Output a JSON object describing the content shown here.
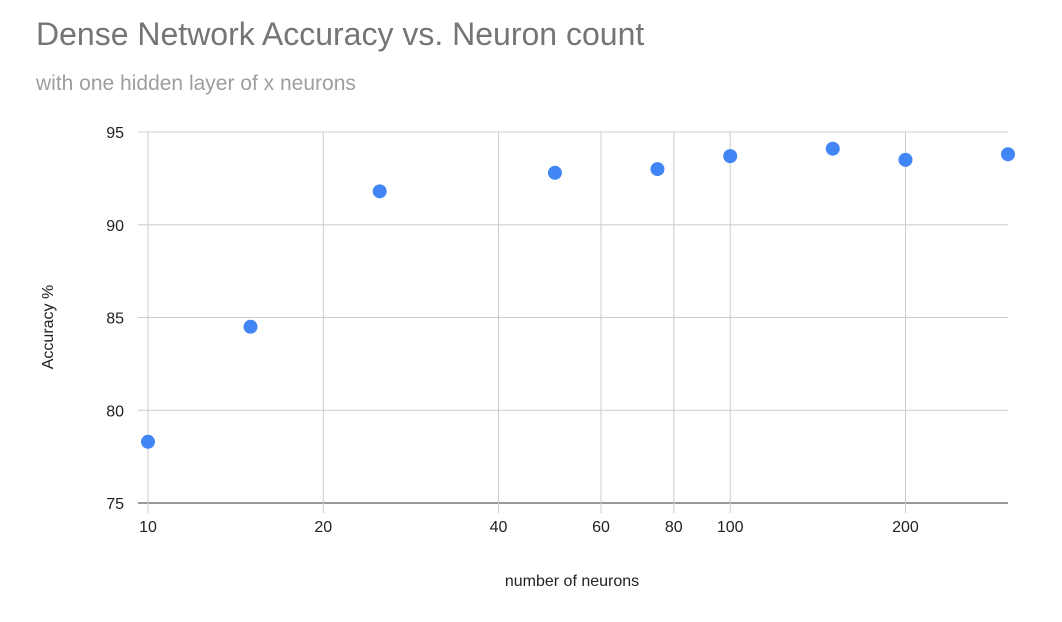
{
  "chart_data": {
    "type": "scatter",
    "title": "Dense Network Accuracy vs. Neuron count",
    "subtitle": "with one hidden layer of x neurons",
    "xlabel": "number of neurons",
    "ylabel": "Accuracy %",
    "x_scale": "log",
    "xlim": [
      10,
      300
    ],
    "ylim": [
      75,
      95
    ],
    "x_ticks": [
      10,
      20,
      40,
      60,
      80,
      100,
      200
    ],
    "y_ticks": [
      75,
      80,
      85,
      90,
      95
    ],
    "grid": true,
    "legend": "none",
    "series": [
      {
        "color": "#4285f4",
        "points": [
          {
            "x": 10,
            "y": 78.3
          },
          {
            "x": 15,
            "y": 84.5
          },
          {
            "x": 25,
            "y": 91.8
          },
          {
            "x": 50,
            "y": 92.8
          },
          {
            "x": 75,
            "y": 93.0
          },
          {
            "x": 100,
            "y": 93.7
          },
          {
            "x": 150,
            "y": 94.1
          },
          {
            "x": 200,
            "y": 93.5
          },
          {
            "x": 300,
            "y": 93.8
          }
        ]
      }
    ]
  }
}
